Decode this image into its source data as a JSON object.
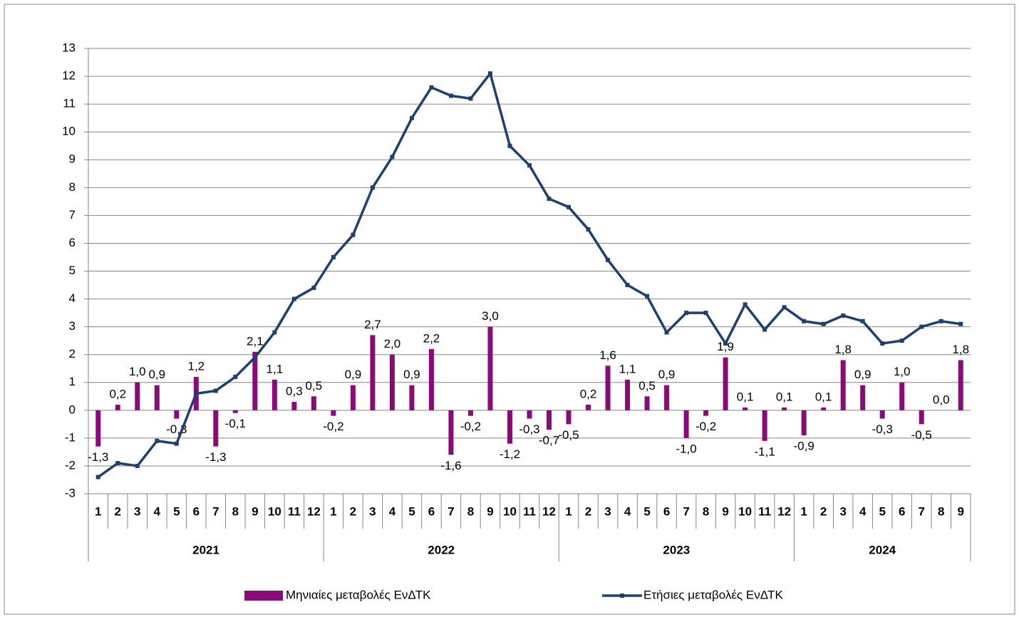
{
  "chart_data": {
    "type": "bar-line",
    "categories": [
      "1",
      "2",
      "3",
      "4",
      "5",
      "6",
      "7",
      "8",
      "9",
      "10",
      "11",
      "12",
      "1",
      "2",
      "3",
      "4",
      "5",
      "6",
      "7",
      "8",
      "9",
      "10",
      "11",
      "12",
      "1",
      "2",
      "3",
      "4",
      "5",
      "6",
      "7",
      "8",
      "9",
      "10",
      "11",
      "12",
      "1",
      "2",
      "3",
      "4",
      "5",
      "6",
      "7",
      "8",
      "9"
    ],
    "x_groups": [
      "2021",
      "2022",
      "2023",
      "2024"
    ],
    "series": [
      {
        "name": "Μηνιαίες μεταβολές ΕνΔΤΚ",
        "type": "bar",
        "color": "#8B0A7A",
        "values": [
          -1.3,
          0.2,
          1.0,
          0.9,
          -0.3,
          1.2,
          -1.3,
          -0.1,
          2.1,
          1.1,
          0.3,
          0.5,
          -0.2,
          0.9,
          2.7,
          2.0,
          0.9,
          2.2,
          -1.6,
          -0.2,
          3.0,
          -1.2,
          -0.3,
          -0.7,
          -0.5,
          0.2,
          1.6,
          1.1,
          0.5,
          0.9,
          -1.0,
          -0.2,
          1.9,
          0.1,
          -1.1,
          0.1,
          -0.9,
          0.1,
          1.8,
          0.9,
          -0.3,
          1.0,
          -0.5,
          0.0,
          1.8
        ],
        "value_labels": [
          "-1,3",
          "0,2",
          "1,0",
          "0,9",
          "-0,3",
          "1,2",
          "-1,3",
          "-0,1",
          "2,1",
          "1,1",
          "0,3",
          "0,5",
          "-0,2",
          "0,9",
          "2,7",
          "2,0",
          "0,9",
          "2,2",
          "-1,6",
          "-0,2",
          "3,0",
          "-1,2",
          "-0,3",
          "-0,7",
          "-0,5",
          "0,2",
          "1,6",
          "1,1",
          "0,5",
          "0,9",
          "-1,0",
          "-0,2",
          "1,9",
          "0,1",
          "-1,1",
          "0,1",
          "-0,9",
          "0,1",
          "1,8",
          "0,9",
          "-0,3",
          "1,0",
          "-0,5",
          "0,0",
          "1,8"
        ]
      },
      {
        "name": "Ετήσιες μεταβολές ΕνΔΤΚ",
        "type": "line",
        "color": "#1F3F6E",
        "values": [
          -2.4,
          -1.9,
          -2.0,
          -1.1,
          -1.2,
          0.6,
          0.7,
          1.2,
          1.9,
          2.8,
          4.0,
          4.4,
          5.5,
          6.3,
          8.0,
          9.1,
          10.5,
          11.6,
          11.3,
          11.2,
          12.1,
          9.5,
          8.8,
          7.6,
          7.3,
          6.5,
          5.4,
          4.5,
          4.1,
          2.8,
          3.5,
          3.5,
          2.4,
          3.8,
          2.9,
          3.7,
          3.2,
          3.1,
          3.4,
          3.2,
          2.4,
          2.5,
          3.0,
          3.2,
          3.1
        ]
      }
    ],
    "ylim": [
      -3,
      13
    ],
    "yticks": [
      -3,
      -2,
      -1,
      0,
      1,
      2,
      3,
      4,
      5,
      6,
      7,
      8,
      9,
      10,
      11,
      12,
      13
    ],
    "grid": true,
    "legend": "bottom"
  }
}
